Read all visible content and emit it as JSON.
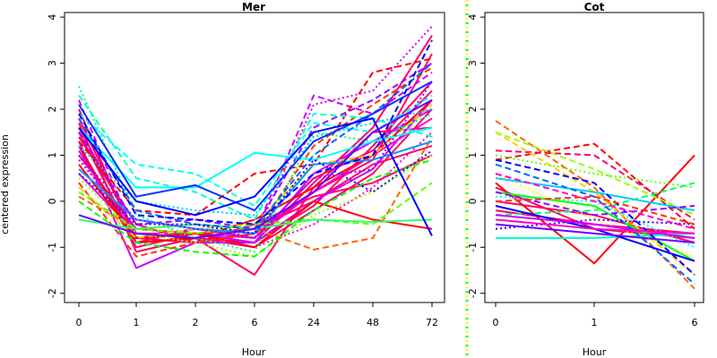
{
  "figure": {
    "ylabel": "centered expression",
    "divider_colors": [
      "#ffff00",
      "#00ff00"
    ]
  },
  "chart_data": [
    {
      "type": "line",
      "title": "Mer",
      "xlabel": "Hour",
      "ylabel": "centered expression",
      "categories": [
        "0",
        "1",
        "2",
        "6",
        "24",
        "48",
        "72"
      ],
      "ylim": [
        -2.2,
        4.1
      ],
      "yticks": [
        -2,
        -1,
        0,
        1,
        2,
        3,
        4
      ],
      "grid": false,
      "legend": "none",
      "series": [
        {
          "color": "#ff0066",
          "dash": "solid",
          "values": [
            1.5,
            -0.9,
            -0.8,
            -1.0,
            -0.2,
            0.6,
            2.0
          ]
        },
        {
          "color": "#ff0066",
          "dash": "solid",
          "values": [
            1.8,
            -0.8,
            -0.9,
            -0.7,
            0.2,
            0.9,
            3.2
          ]
        },
        {
          "color": "#ff0066",
          "dash": "solid",
          "values": [
            1.2,
            -1.0,
            -0.7,
            -0.9,
            -0.1,
            1.2,
            2.6
          ]
        },
        {
          "color": "#ff0066",
          "dash": "solid",
          "values": [
            1.6,
            -0.7,
            -0.8,
            -1.6,
            0.3,
            1.5,
            1.6
          ]
        },
        {
          "color": "#ff0066",
          "dash": "solid",
          "values": [
            1.0,
            -0.6,
            -0.7,
            -0.6,
            0.0,
            0.8,
            1.2
          ]
        },
        {
          "color": "#ff0066",
          "dash": "solid",
          "values": [
            2.0,
            -0.9,
            -0.6,
            -0.8,
            0.5,
            1.1,
            2.4
          ]
        },
        {
          "color": "#ff0066",
          "dash": "solid",
          "values": [
            1.4,
            -0.5,
            -0.9,
            -0.5,
            0.1,
            0.4,
            1.0
          ]
        },
        {
          "color": "#ff0066",
          "dash": "solid",
          "values": [
            1.7,
            -1.1,
            -0.8,
            -0.9,
            0.4,
            1.6,
            3.6
          ]
        },
        {
          "color": "#cc00ff",
          "dash": "solid",
          "values": [
            1.3,
            -1.45,
            -0.9,
            -0.9,
            0.0,
            0.7,
            2.2
          ]
        },
        {
          "color": "#cc00ff",
          "dash": "dashed",
          "values": [
            2.2,
            -0.8,
            -0.6,
            -0.7,
            2.3,
            1.9,
            2.8
          ]
        },
        {
          "color": "#cc00ff",
          "dash": "dotted",
          "values": [
            0.9,
            -0.6,
            -0.5,
            -0.8,
            2.1,
            2.4,
            3.8
          ]
        },
        {
          "color": "#cc00ff",
          "dash": "solid",
          "values": [
            1.1,
            -0.8,
            -0.7,
            -0.9,
            0.6,
            1.3,
            2.0
          ]
        },
        {
          "color": "#9900ff",
          "dash": "dashed",
          "values": [
            1.5,
            -0.5,
            -0.4,
            -0.6,
            1.6,
            2.2,
            3.0
          ]
        },
        {
          "color": "#ff00cc",
          "dash": "dotted",
          "values": [
            1.0,
            -0.9,
            -0.8,
            -1.0,
            -0.5,
            0.3,
            1.5
          ]
        },
        {
          "color": "#ff00cc",
          "dash": "solid",
          "values": [
            0.6,
            -0.7,
            -0.7,
            -0.8,
            0.2,
            1.0,
            1.8
          ]
        },
        {
          "color": "#ff0000",
          "dash": "dashed",
          "values": [
            1.3,
            -0.2,
            -0.3,
            0.6,
            0.8,
            2.8,
            3.1
          ]
        },
        {
          "color": "#ff0000",
          "dash": "solid",
          "values": [
            0.8,
            -0.8,
            -0.7,
            -1.0,
            0.0,
            -0.4,
            -0.6
          ]
        },
        {
          "color": "#ff0000",
          "dash": "solid",
          "values": [
            1.2,
            -0.9,
            -0.8,
            -0.4,
            0.3,
            1.0,
            2.2
          ]
        },
        {
          "color": "#ff3300",
          "dash": "dashed",
          "values": [
            0.4,
            -1.2,
            -0.9,
            -0.7,
            1.2,
            2.1,
            2.9
          ]
        },
        {
          "color": "#ff6600",
          "dash": "dashed",
          "values": [
            0.1,
            -0.6,
            -0.7,
            -0.6,
            -1.05,
            -0.8,
            1.4
          ]
        },
        {
          "color": "#ffcc00",
          "dash": "dashed",
          "values": [
            0.3,
            -0.8,
            -0.6,
            -0.5,
            0.8,
            1.0,
            2.1
          ]
        },
        {
          "color": "#99ff00",
          "dash": "dotted",
          "values": [
            0.5,
            -0.7,
            -0.9,
            -1.2,
            -0.3,
            0.2,
            1.0
          ]
        },
        {
          "color": "#66ff00",
          "dash": "dashed",
          "values": [
            0.2,
            -0.6,
            -0.7,
            -0.5,
            -0.4,
            -0.5,
            0.4
          ]
        },
        {
          "color": "#33ff66",
          "dash": "solid",
          "values": [
            -0.4,
            -0.6,
            -0.5,
            -0.6,
            -0.4,
            -0.45,
            -0.4
          ]
        },
        {
          "color": "#00ff66",
          "dash": "dotted",
          "values": [
            2.5,
            -0.3,
            -0.8,
            -1.1,
            1.5,
            1.3,
            1.9
          ]
        },
        {
          "color": "#00ff00",
          "dash": "dashed",
          "values": [
            0.0,
            -0.9,
            -1.1,
            -1.2,
            -0.2,
            0.5,
            0.9
          ]
        },
        {
          "color": "#00ffcc",
          "dash": "dashed",
          "values": [
            2.3,
            0.5,
            0.2,
            -0.4,
            1.9,
            1.8,
            1.4
          ]
        },
        {
          "color": "#00ffff",
          "dash": "solid",
          "values": [
            1.6,
            0.3,
            0.3,
            1.05,
            0.9,
            1.3,
            1.6
          ]
        },
        {
          "color": "#00ffff",
          "dash": "dashed",
          "values": [
            1.9,
            0.8,
            0.6,
            -0.1,
            1.7,
            1.5,
            2.3
          ]
        },
        {
          "color": "#00ccff",
          "dash": "dotted",
          "values": [
            1.2,
            0.0,
            -0.2,
            -0.3,
            1.4,
            1.7,
            2.0
          ]
        },
        {
          "color": "#0099ff",
          "dash": "solid",
          "values": [
            0.7,
            -0.4,
            -0.6,
            -0.7,
            0.8,
            0.9,
            1.3
          ]
        },
        {
          "color": "#0066ff",
          "dash": "dashed",
          "values": [
            1.8,
            -0.2,
            -0.5,
            -0.6,
            1.0,
            1.9,
            3.0
          ]
        },
        {
          "color": "#0033ff",
          "dash": "solid",
          "values": [
            2.1,
            0.1,
            0.35,
            -0.2,
            1.3,
            1.9,
            2.6
          ]
        },
        {
          "color": "#0000ff",
          "dash": "solid",
          "values": [
            1.6,
            0.0,
            -0.3,
            0.1,
            1.5,
            1.8,
            -0.75
          ]
        },
        {
          "color": "#0000ff",
          "dash": "dashed",
          "values": [
            1.9,
            -0.3,
            -0.4,
            -0.5,
            0.6,
            1.0,
            3.5
          ]
        },
        {
          "color": "#3300ff",
          "dash": "dotted",
          "values": [
            0.6,
            -0.5,
            -0.5,
            -0.7,
            0.9,
            0.2,
            1.1
          ]
        },
        {
          "color": "#6600ff",
          "dash": "solid",
          "values": [
            -0.3,
            -0.7,
            -0.8,
            -0.6,
            0.2,
            1.5,
            2.2
          ]
        },
        {
          "color": "#9900ff",
          "dash": "dotted",
          "values": [
            1.0,
            -0.4,
            -0.6,
            -0.8,
            0.5,
            0.7,
            2.6
          ]
        }
      ]
    },
    {
      "type": "line",
      "title": "Cot",
      "xlabel": "Hour",
      "categories": [
        "0",
        "1",
        "6"
      ],
      "ylim": [
        -2.2,
        4.1
      ],
      "yticks": [
        -2,
        -1,
        0,
        1,
        2,
        3,
        4
      ],
      "grid": false,
      "legend": "none",
      "series": [
        {
          "color": "#ff0000",
          "dash": "solid",
          "values": [
            0.4,
            -1.35,
            1.0
          ]
        },
        {
          "color": "#ff0000",
          "dash": "dashed",
          "values": [
            0.9,
            1.25,
            -0.6
          ]
        },
        {
          "color": "#ff0066",
          "dash": "solid",
          "values": [
            0.3,
            -0.6,
            -0.8
          ]
        },
        {
          "color": "#ff0066",
          "dash": "solid",
          "values": [
            -0.2,
            -0.5,
            -0.7
          ]
        },
        {
          "color": "#ff0066",
          "dash": "solid",
          "values": [
            0.0,
            -0.3,
            -0.9
          ]
        },
        {
          "color": "#ff0066",
          "dash": "dashed",
          "values": [
            1.1,
            1.0,
            -0.4
          ]
        },
        {
          "color": "#ff6600",
          "dash": "dashed",
          "values": [
            1.75,
            0.3,
            -1.9
          ]
        },
        {
          "color": "#ffcc00",
          "dash": "dashed",
          "values": [
            1.5,
            0.2,
            -1.6
          ]
        },
        {
          "color": "#ffff00",
          "dash": "dotted",
          "values": [
            0.6,
            -0.4,
            -1.2
          ]
        },
        {
          "color": "#99ff00",
          "dash": "dashed",
          "values": [
            1.5,
            0.7,
            -0.3
          ]
        },
        {
          "color": "#66ff00",
          "dash": "dotted",
          "values": [
            1.0,
            0.6,
            0.3
          ]
        },
        {
          "color": "#00ff66",
          "dash": "dashed",
          "values": [
            -0.3,
            -0.2,
            0.4
          ]
        },
        {
          "color": "#00ff00",
          "dash": "solid",
          "values": [
            0.2,
            -0.1,
            -1.3
          ]
        },
        {
          "color": "#00ffcc",
          "dash": "solid",
          "values": [
            -0.8,
            -0.8,
            -0.7
          ]
        },
        {
          "color": "#00ffff",
          "dash": "dotted",
          "values": [
            0.1,
            0.0,
            -1.0
          ]
        },
        {
          "color": "#00ccff",
          "dash": "solid",
          "values": [
            0.5,
            0.2,
            -0.2
          ]
        },
        {
          "color": "#0066ff",
          "dash": "dashed",
          "values": [
            0.8,
            0.1,
            -1.8
          ]
        },
        {
          "color": "#0000ff",
          "dash": "dashed",
          "values": [
            0.9,
            0.4,
            -1.6
          ]
        },
        {
          "color": "#0000ff",
          "dash": "solid",
          "values": [
            -0.1,
            -0.6,
            -1.3
          ]
        },
        {
          "color": "#3300ff",
          "dash": "dotted",
          "values": [
            -0.6,
            -0.4,
            -0.5
          ]
        },
        {
          "color": "#6600ff",
          "dash": "solid",
          "values": [
            -0.5,
            -0.7,
            -0.9
          ]
        },
        {
          "color": "#9900ff",
          "dash": "dashed",
          "values": [
            0.2,
            -0.3,
            -0.1
          ]
        },
        {
          "color": "#cc00ff",
          "dash": "solid",
          "values": [
            -0.3,
            -0.5,
            -0.8
          ]
        },
        {
          "color": "#ff00cc",
          "dash": "dashed",
          "values": [
            0.6,
            0.0,
            -0.6
          ]
        },
        {
          "color": "#ff00cc",
          "dash": "solid",
          "values": [
            -0.4,
            -0.6,
            -0.7
          ]
        },
        {
          "color": "#ff3300",
          "dash": "dashed",
          "values": [
            0.0,
            0.1,
            -0.5
          ]
        }
      ]
    }
  ]
}
